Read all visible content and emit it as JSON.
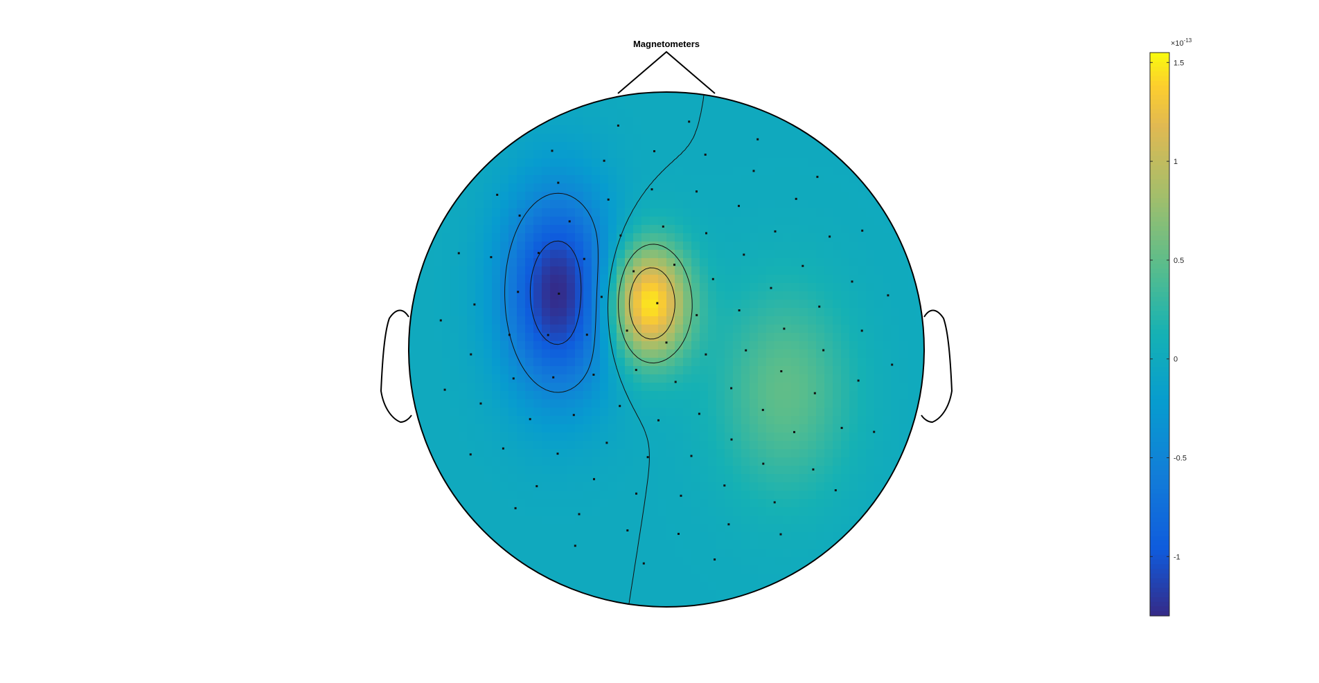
{
  "figure": {
    "title": "Magnetometers"
  },
  "chart_data": {
    "type": "heatmap",
    "title": "Magnetometers",
    "plot": "MEG sensor topography (magnetometers), head outline with nose and ears, contour lines",
    "colormap": "parula",
    "colorbar": {
      "exponent_label": "×10",
      "exponent_power": "-13",
      "clim": [
        -1.3,
        1.55
      ],
      "ticks": [
        {
          "value": 1.5,
          "label": "1.5"
        },
        {
          "value": 1.0,
          "label": "1"
        },
        {
          "value": 0.5,
          "label": "0.5"
        },
        {
          "value": 0.0,
          "label": "0"
        },
        {
          "value": -0.5,
          "label": "-0.5"
        },
        {
          "value": -1.0,
          "label": "-1"
        }
      ],
      "units_scale": "1e-13"
    },
    "field_sources": [
      {
        "name": "negative-lobe",
        "x": -0.42,
        "y": 0.22,
        "sx": 0.15,
        "sy": 0.28,
        "amp": -1.3
      },
      {
        "name": "positive-lobe",
        "x": -0.07,
        "y": 0.18,
        "sx": 0.11,
        "sy": 0.16,
        "amp": 1.55
      },
      {
        "name": "secondary-positive",
        "x": 0.46,
        "y": -0.16,
        "sx": 0.18,
        "sy": 0.28,
        "amp": 0.5
      }
    ],
    "contour_levels": [
      -1.0,
      -0.5,
      0.0,
      0.5,
      1.0,
      1.5
    ],
    "grid": false,
    "legend": "colorbar right"
  }
}
